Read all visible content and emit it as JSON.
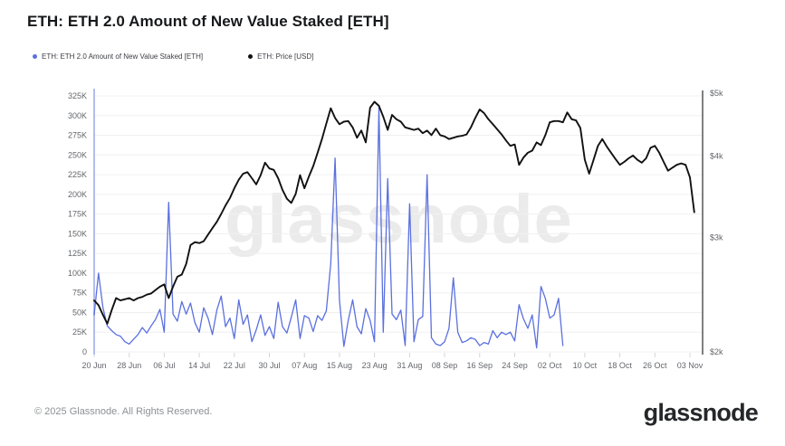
{
  "header": {
    "title": "ETH: ETH 2.0 Amount of New Value Staked [ETH]"
  },
  "legend": [
    {
      "label": "ETH: ETH 2.0 Amount of New Value Staked [ETH]",
      "color": "#5b70de"
    },
    {
      "label": "ETH: Price [USD]",
      "color": "#111111"
    }
  ],
  "watermark": "glassnode",
  "footer": {
    "copyright": "© 2025 Glassnode. All Rights Reserved.",
    "brand": "glassnode"
  },
  "colors": {
    "staked_line": "#5b70de",
    "price_line": "#111111",
    "grid": "#f0f0f1",
    "axis_left_line": "#b3bdf0",
    "axis_right_line": "#3a3b3e",
    "tick_text": "#64666b",
    "watermark": "#ebebec"
  },
  "chart_data": {
    "type": "line",
    "title": "ETH: ETH 2.0 Amount of New Value Staked [ETH]",
    "grid": true,
    "legend_position": "top-left",
    "x_axis": {
      "unit": "date",
      "tick_labels": [
        "20 Jun",
        "28 Jun",
        "06 Jul",
        "14 Jul",
        "22 Jul",
        "30 Jul",
        "07 Aug",
        "15 Aug",
        "23 Aug",
        "31 Aug",
        "08 Sep",
        "16 Sep",
        "24 Sep",
        "02 Oct",
        "10 Oct",
        "18 Oct",
        "26 Oct",
        "03 Nov"
      ],
      "tick_days": [
        0,
        8,
        16,
        24,
        32,
        40,
        48,
        56,
        64,
        72,
        80,
        88,
        96,
        104,
        112,
        120,
        128,
        136
      ],
      "domain_days": [
        0,
        139
      ]
    },
    "y_left": {
      "name": "ETH 2.0 Amount of New Value Staked [ETH]",
      "scale": "linear",
      "range": [
        0,
        325000
      ],
      "tick_values": [
        0,
        25000,
        50000,
        75000,
        100000,
        125000,
        150000,
        175000,
        200000,
        225000,
        250000,
        275000,
        300000,
        325000
      ],
      "tick_labels": [
        "0",
        "25K",
        "50K",
        "75K",
        "100K",
        "125K",
        "150K",
        "175K",
        "200K",
        "225K",
        "250K",
        "275K",
        "300K",
        "325K"
      ]
    },
    "y_right": {
      "name": "ETH Price [USD]",
      "scale": "log",
      "range": [
        2000,
        5000
      ],
      "tick_values": [
        2000,
        3000,
        4000,
        5000
      ],
      "tick_labels": [
        "$2k",
        "$3k",
        "$4k",
        "$5k"
      ]
    },
    "series": [
      {
        "name": "ETH: ETH 2.0 Amount of New Value Staked [ETH]",
        "color": "#5b70de",
        "y_axis": "left",
        "points": [
          [
            0,
            47000
          ],
          [
            1,
            100000
          ],
          [
            2,
            56000
          ],
          [
            3,
            33000
          ],
          [
            4,
            27000
          ],
          [
            5,
            22000
          ],
          [
            6,
            20000
          ],
          [
            7,
            13000
          ],
          [
            8,
            10000
          ],
          [
            9,
            16000
          ],
          [
            10,
            22000
          ],
          [
            11,
            31000
          ],
          [
            12,
            24000
          ],
          [
            13,
            33000
          ],
          [
            14,
            41000
          ],
          [
            15,
            54000
          ],
          [
            16,
            25000
          ],
          [
            17,
            190000
          ],
          [
            18,
            48000
          ],
          [
            19,
            39000
          ],
          [
            20,
            64000
          ],
          [
            21,
            48000
          ],
          [
            22,
            62000
          ],
          [
            23,
            37000
          ],
          [
            24,
            25000
          ],
          [
            25,
            56000
          ],
          [
            26,
            43000
          ],
          [
            27,
            22000
          ],
          [
            28,
            53000
          ],
          [
            29,
            71000
          ],
          [
            30,
            32000
          ],
          [
            31,
            43000
          ],
          [
            32,
            17000
          ],
          [
            33,
            66000
          ],
          [
            34,
            35000
          ],
          [
            35,
            47000
          ],
          [
            36,
            13000
          ],
          [
            37,
            28000
          ],
          [
            38,
            47000
          ],
          [
            39,
            21000
          ],
          [
            40,
            32000
          ],
          [
            41,
            17000
          ],
          [
            42,
            63000
          ],
          [
            43,
            32000
          ],
          [
            44,
            24000
          ],
          [
            45,
            44000
          ],
          [
            46,
            66000
          ],
          [
            47,
            17000
          ],
          [
            48,
            46000
          ],
          [
            49,
            43000
          ],
          [
            50,
            26000
          ],
          [
            51,
            46000
          ],
          [
            52,
            40000
          ],
          [
            53,
            52000
          ],
          [
            54,
            112000
          ],
          [
            55,
            246000
          ],
          [
            56,
            66000
          ],
          [
            57,
            7000
          ],
          [
            58,
            40000
          ],
          [
            59,
            66000
          ],
          [
            60,
            32000
          ],
          [
            61,
            23000
          ],
          [
            62,
            55000
          ],
          [
            63,
            40000
          ],
          [
            64,
            13000
          ],
          [
            65,
            310000
          ],
          [
            66,
            25000
          ],
          [
            67,
            220000
          ],
          [
            68,
            48000
          ],
          [
            69,
            41000
          ],
          [
            70,
            53000
          ],
          [
            71,
            8000
          ],
          [
            72,
            188000
          ],
          [
            73,
            13000
          ],
          [
            74,
            41000
          ],
          [
            75,
            45000
          ],
          [
            76,
            225000
          ],
          [
            77,
            18000
          ],
          [
            78,
            10000
          ],
          [
            79,
            8000
          ],
          [
            80,
            13000
          ],
          [
            81,
            30000
          ],
          [
            82,
            94000
          ],
          [
            83,
            25000
          ],
          [
            84,
            12000
          ],
          [
            85,
            14000
          ],
          [
            86,
            18000
          ],
          [
            87,
            16000
          ],
          [
            88,
            8000
          ],
          [
            89,
            12000
          ],
          [
            90,
            10000
          ],
          [
            91,
            27000
          ],
          [
            92,
            18000
          ],
          [
            93,
            25000
          ],
          [
            94,
            22000
          ],
          [
            95,
            25000
          ],
          [
            96,
            14000
          ],
          [
            97,
            60000
          ],
          [
            98,
            42000
          ],
          [
            99,
            30000
          ],
          [
            100,
            47000
          ],
          [
            101,
            5000
          ],
          [
            102,
            83000
          ],
          [
            103,
            68000
          ],
          [
            104,
            43000
          ],
          [
            105,
            47000
          ],
          [
            106,
            68000
          ],
          [
            107,
            8000
          ]
        ]
      },
      {
        "name": "ETH: Price [USD]",
        "color": "#111111",
        "y_axis": "right",
        "points": [
          [
            0,
            2400
          ],
          [
            1,
            2360
          ],
          [
            2,
            2280
          ],
          [
            3,
            2210
          ],
          [
            4,
            2320
          ],
          [
            5,
            2420
          ],
          [
            6,
            2400
          ],
          [
            7,
            2410
          ],
          [
            8,
            2420
          ],
          [
            9,
            2400
          ],
          [
            10,
            2420
          ],
          [
            11,
            2430
          ],
          [
            12,
            2450
          ],
          [
            13,
            2460
          ],
          [
            14,
            2490
          ],
          [
            15,
            2520
          ],
          [
            16,
            2540
          ],
          [
            17,
            2420
          ],
          [
            18,
            2520
          ],
          [
            19,
            2610
          ],
          [
            20,
            2630
          ],
          [
            21,
            2730
          ],
          [
            22,
            2920
          ],
          [
            23,
            2950
          ],
          [
            24,
            2940
          ],
          [
            25,
            2960
          ],
          [
            26,
            3030
          ],
          [
            27,
            3100
          ],
          [
            28,
            3170
          ],
          [
            29,
            3260
          ],
          [
            30,
            3360
          ],
          [
            31,
            3450
          ],
          [
            32,
            3570
          ],
          [
            33,
            3680
          ],
          [
            34,
            3760
          ],
          [
            35,
            3780
          ],
          [
            36,
            3700
          ],
          [
            37,
            3620
          ],
          [
            38,
            3740
          ],
          [
            39,
            3910
          ],
          [
            40,
            3830
          ],
          [
            41,
            3810
          ],
          [
            42,
            3700
          ],
          [
            43,
            3550
          ],
          [
            44,
            3440
          ],
          [
            45,
            3390
          ],
          [
            46,
            3500
          ],
          [
            47,
            3740
          ],
          [
            48,
            3570
          ],
          [
            49,
            3720
          ],
          [
            50,
            3860
          ],
          [
            51,
            4050
          ],
          [
            52,
            4250
          ],
          [
            53,
            4490
          ],
          [
            54,
            4740
          ],
          [
            55,
            4580
          ],
          [
            56,
            4480
          ],
          [
            57,
            4520
          ],
          [
            58,
            4530
          ],
          [
            59,
            4430
          ],
          [
            60,
            4270
          ],
          [
            61,
            4380
          ],
          [
            62,
            4200
          ],
          [
            63,
            4750
          ],
          [
            64,
            4850
          ],
          [
            65,
            4780
          ],
          [
            66,
            4600
          ],
          [
            67,
            4390
          ],
          [
            68,
            4630
          ],
          [
            69,
            4560
          ],
          [
            70,
            4520
          ],
          [
            71,
            4430
          ],
          [
            72,
            4410
          ],
          [
            73,
            4390
          ],
          [
            74,
            4410
          ],
          [
            75,
            4340
          ],
          [
            76,
            4380
          ],
          [
            77,
            4310
          ],
          [
            78,
            4410
          ],
          [
            79,
            4310
          ],
          [
            80,
            4290
          ],
          [
            81,
            4250
          ],
          [
            82,
            4270
          ],
          [
            83,
            4290
          ],
          [
            84,
            4300
          ],
          [
            85,
            4320
          ],
          [
            86,
            4430
          ],
          [
            87,
            4580
          ],
          [
            88,
            4720
          ],
          [
            89,
            4660
          ],
          [
            90,
            4560
          ],
          [
            91,
            4480
          ],
          [
            92,
            4400
          ],
          [
            93,
            4320
          ],
          [
            94,
            4230
          ],
          [
            95,
            4150
          ],
          [
            96,
            4170
          ],
          [
            97,
            3880
          ],
          [
            98,
            3980
          ],
          [
            99,
            4050
          ],
          [
            100,
            4080
          ],
          [
            101,
            4200
          ],
          [
            102,
            4160
          ],
          [
            103,
            4310
          ],
          [
            104,
            4510
          ],
          [
            105,
            4530
          ],
          [
            106,
            4530
          ],
          [
            107,
            4510
          ],
          [
            108,
            4670
          ],
          [
            109,
            4560
          ],
          [
            110,
            4540
          ],
          [
            111,
            4420
          ],
          [
            112,
            3950
          ],
          [
            113,
            3760
          ],
          [
            114,
            3950
          ],
          [
            115,
            4150
          ],
          [
            116,
            4250
          ],
          [
            117,
            4140
          ],
          [
            118,
            4050
          ],
          [
            119,
            3960
          ],
          [
            120,
            3880
          ],
          [
            121,
            3920
          ],
          [
            122,
            3970
          ],
          [
            123,
            4010
          ],
          [
            124,
            3950
          ],
          [
            125,
            3910
          ],
          [
            126,
            3970
          ],
          [
            127,
            4120
          ],
          [
            128,
            4150
          ],
          [
            129,
            4050
          ],
          [
            130,
            3920
          ],
          [
            131,
            3800
          ],
          [
            132,
            3840
          ],
          [
            133,
            3880
          ],
          [
            134,
            3900
          ],
          [
            135,
            3880
          ],
          [
            136,
            3710
          ],
          [
            137,
            3280
          ]
        ]
      }
    ]
  }
}
